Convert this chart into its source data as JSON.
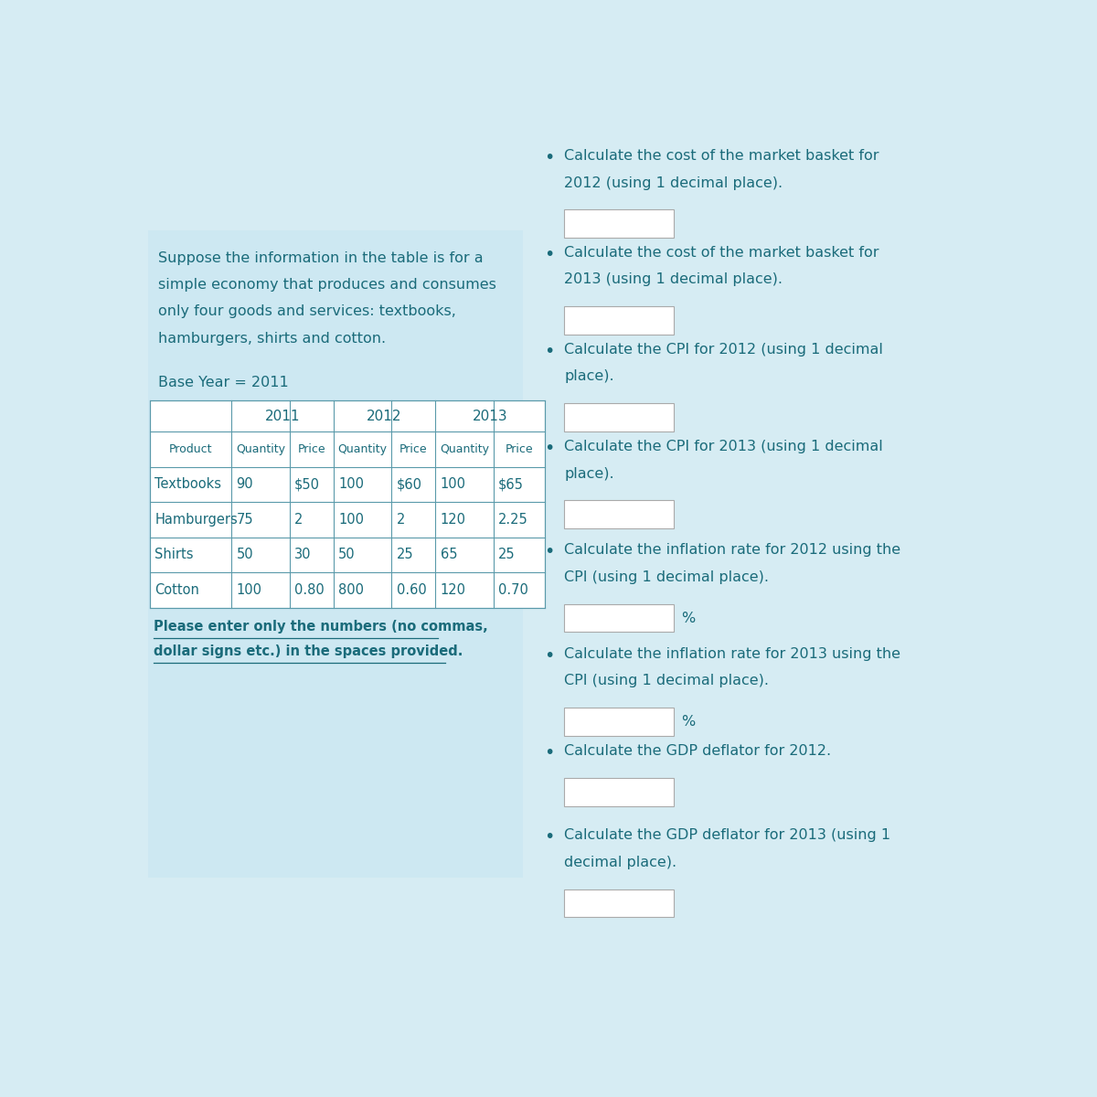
{
  "bg_color": "#d6ecf3",
  "left_panel_bg": "#cde8f2",
  "text_color": "#1a6b7a",
  "border_color": "#5a9aaa",
  "intro_text_lines": [
    "Suppose the information in the table is for a",
    "simple economy that produces and consumes",
    "only four goods and services: textbooks,",
    "hamburgers, shirts and cotton."
  ],
  "base_year_text": "Base Year = 2011",
  "note_text_lines": [
    "Please enter only the numbers (no commas,",
    "dollar signs etc.) in the spaces provided."
  ],
  "years": [
    "2011",
    "2012",
    "2013"
  ],
  "col_headers": [
    "Product",
    "Quantity",
    "Price",
    "Quantity",
    "Price",
    "Quantity",
    "Price"
  ],
  "rows": [
    [
      "Textbooks",
      "90",
      "$50",
      "100",
      "$60",
      "100",
      "$65"
    ],
    [
      "Hamburgers",
      "75",
      "2",
      "100",
      "2",
      "120",
      "2.25"
    ],
    [
      "Shirts",
      "50",
      "30",
      "50",
      "25",
      "65",
      "25"
    ],
    [
      "Cotton",
      "100",
      "0.80",
      "800",
      "0.60",
      "120",
      "0.70"
    ]
  ],
  "right_bullets": [
    "Calculate the cost of the market basket for\n2012 (using 1 decimal place).",
    "Calculate the cost of the market basket for\n2013 (using 1 decimal place).",
    "Calculate the CPI for 2012 (using 1 decimal\nplace).",
    "Calculate the CPI for 2013 (using 1 decimal\nplace).",
    "Calculate the inflation rate for 2012 using the\nCPI (using 1 decimal place).",
    "Calculate the inflation rate for 2013 using the\nCPI (using 1 decimal place).",
    "Calculate the GDP deflator for 2012.",
    "Calculate the GDP deflator for 2013 (using 1\ndecimal place)."
  ],
  "show_percent": [
    false,
    false,
    false,
    false,
    true,
    true,
    false,
    false
  ]
}
